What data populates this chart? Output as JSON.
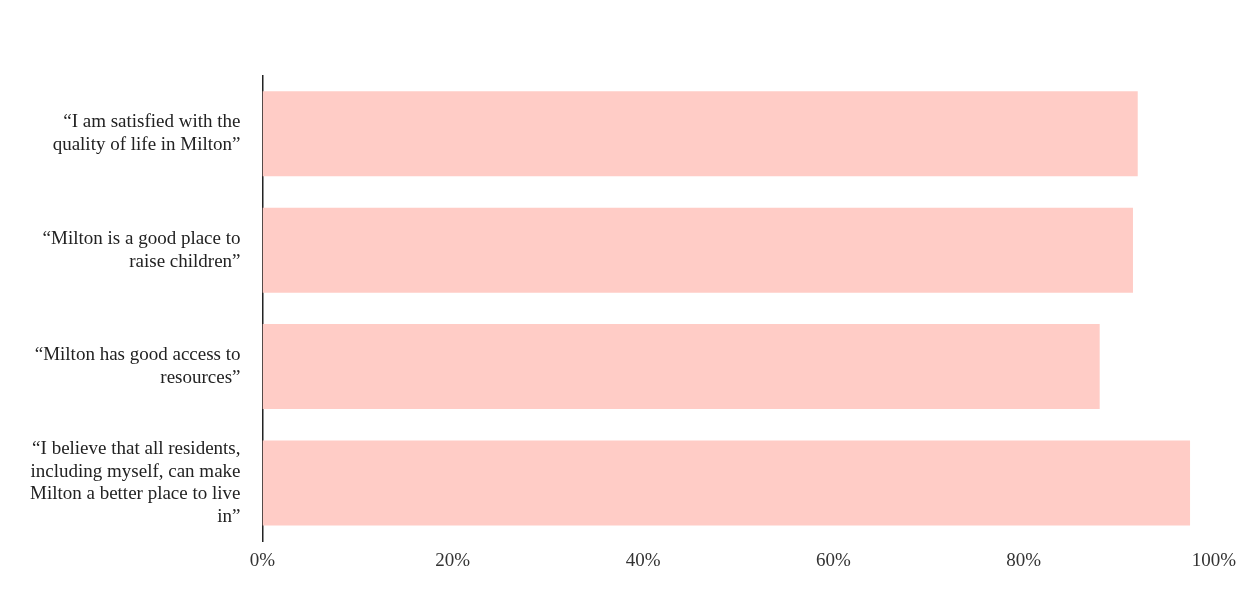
{
  "chart_data": {
    "type": "bar",
    "orientation": "horizontal",
    "categories": [
      "“I am satisfied with the quality of life in Milton”",
      "“Milton is a good place to raise children”",
      "“Milton has good access to resources”",
      "“I believe that all residents, including myself, can make Milton a better place to live in”"
    ],
    "values": [
      92,
      91.5,
      88,
      97.5
    ],
    "color": "#ffccc6",
    "xlim": [
      0,
      100
    ],
    "xticks": [
      {
        "value": 0,
        "label": "0%"
      },
      {
        "value": 20,
        "label": "20%"
      },
      {
        "value": 40,
        "label": "40%"
      },
      {
        "value": 60,
        "label": "60%"
      },
      {
        "value": 80,
        "label": "80%"
      },
      {
        "value": 100,
        "label": "100%"
      }
    ],
    "grid": false,
    "legend": false
  }
}
